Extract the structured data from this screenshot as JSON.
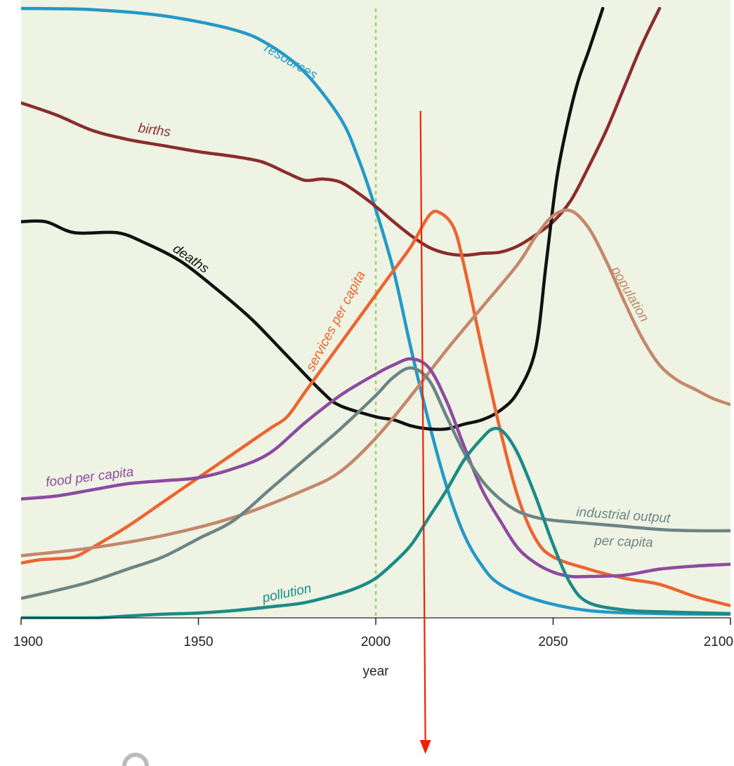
{
  "chart_data": {
    "type": "line",
    "xlabel": "year",
    "xlim": [
      1900,
      2100
    ],
    "ylim": [
      0,
      1
    ],
    "xticks": [
      1900,
      1950,
      2000,
      2050,
      2100
    ],
    "grid": false,
    "reference_line": {
      "x": 2000,
      "style": "dashed",
      "color": "#9fd36a"
    },
    "annotation_arrow": {
      "x": 2013,
      "color": "#ee2200",
      "direction": "down"
    },
    "background": "#eef3e3",
    "series": [
      {
        "name": "resources",
        "color": "#2399c8",
        "points": [
          [
            1900,
            1.0
          ],
          [
            1920,
            0.998
          ],
          [
            1940,
            0.988
          ],
          [
            1960,
            0.965
          ],
          [
            1970,
            0.94
          ],
          [
            1980,
            0.895
          ],
          [
            1990,
            0.82
          ],
          [
            1995,
            0.755
          ],
          [
            2000,
            0.67
          ],
          [
            2005,
            0.57
          ],
          [
            2010,
            0.44
          ],
          [
            2015,
            0.32
          ],
          [
            2020,
            0.215
          ],
          [
            2025,
            0.135
          ],
          [
            2030,
            0.085
          ],
          [
            2035,
            0.055
          ],
          [
            2045,
            0.03
          ],
          [
            2060,
            0.012
          ],
          [
            2080,
            0.007
          ],
          [
            2100,
            0.006
          ]
        ]
      },
      {
        "name": "births",
        "color": "#8b2c2c",
        "points": [
          [
            1900,
            0.845
          ],
          [
            1910,
            0.825
          ],
          [
            1920,
            0.8
          ],
          [
            1930,
            0.785
          ],
          [
            1940,
            0.775
          ],
          [
            1950,
            0.765
          ],
          [
            1960,
            0.757
          ],
          [
            1968,
            0.748
          ],
          [
            1975,
            0.73
          ],
          [
            1980,
            0.718
          ],
          [
            1985,
            0.72
          ],
          [
            1990,
            0.715
          ],
          [
            1995,
            0.697
          ],
          [
            2000,
            0.675
          ],
          [
            2005,
            0.65
          ],
          [
            2010,
            0.627
          ],
          [
            2015,
            0.608
          ],
          [
            2020,
            0.598
          ],
          [
            2025,
            0.595
          ],
          [
            2030,
            0.598
          ],
          [
            2035,
            0.6
          ],
          [
            2040,
            0.61
          ],
          [
            2045,
            0.628
          ],
          [
            2050,
            0.65
          ],
          [
            2055,
            0.685
          ],
          [
            2060,
            0.74
          ],
          [
            2065,
            0.8
          ],
          [
            2070,
            0.87
          ],
          [
            2075,
            0.94
          ],
          [
            2080,
            1.0
          ]
        ]
      },
      {
        "name": "deaths",
        "color": "#111111",
        "points": [
          [
            1900,
            0.65
          ],
          [
            1907,
            0.65
          ],
          [
            1915,
            0.632
          ],
          [
            1927,
            0.632
          ],
          [
            1935,
            0.615
          ],
          [
            1945,
            0.585
          ],
          [
            1955,
            0.54
          ],
          [
            1965,
            0.49
          ],
          [
            1975,
            0.43
          ],
          [
            1985,
            0.37
          ],
          [
            1990,
            0.348
          ],
          [
            2000,
            0.33
          ],
          [
            2005,
            0.325
          ],
          [
            2010,
            0.315
          ],
          [
            2015,
            0.31
          ],
          [
            2020,
            0.31
          ],
          [
            2025,
            0.318
          ],
          [
            2030,
            0.325
          ],
          [
            2035,
            0.34
          ],
          [
            2040,
            0.37
          ],
          [
            2045,
            0.44
          ],
          [
            2048,
            0.58
          ],
          [
            2051,
            0.72
          ],
          [
            2054,
            0.81
          ],
          [
            2057,
            0.88
          ],
          [
            2060,
            0.93
          ],
          [
            2064,
            1.0
          ]
        ]
      },
      {
        "name": "services per capita",
        "color": "#ec6430",
        "points": [
          [
            1900,
            0.09
          ],
          [
            1905,
            0.095
          ],
          [
            1910,
            0.097
          ],
          [
            1915,
            0.1
          ],
          [
            1920,
            0.115
          ],
          [
            1930,
            0.15
          ],
          [
            1940,
            0.19
          ],
          [
            1950,
            0.23
          ],
          [
            1960,
            0.27
          ],
          [
            1970,
            0.31
          ],
          [
            1975,
            0.33
          ],
          [
            1980,
            0.37
          ],
          [
            1990,
            0.45
          ],
          [
            2000,
            0.53
          ],
          [
            2005,
            0.57
          ],
          [
            2010,
            0.61
          ],
          [
            2015,
            0.66
          ],
          [
            2018,
            0.665
          ],
          [
            2022,
            0.64
          ],
          [
            2025,
            0.575
          ],
          [
            2030,
            0.44
          ],
          [
            2035,
            0.31
          ],
          [
            2040,
            0.2
          ],
          [
            2045,
            0.13
          ],
          [
            2050,
            0.1
          ],
          [
            2060,
            0.08
          ],
          [
            2070,
            0.065
          ],
          [
            2080,
            0.055
          ],
          [
            2090,
            0.035
          ],
          [
            2100,
            0.02
          ]
        ]
      },
      {
        "name": "population",
        "color": "#c4876b",
        "points": [
          [
            1900,
            0.102
          ],
          [
            1920,
            0.115
          ],
          [
            1940,
            0.135
          ],
          [
            1960,
            0.165
          ],
          [
            1980,
            0.21
          ],
          [
            1990,
            0.24
          ],
          [
            2000,
            0.295
          ],
          [
            2010,
            0.365
          ],
          [
            2020,
            0.44
          ],
          [
            2030,
            0.51
          ],
          [
            2040,
            0.58
          ],
          [
            2045,
            0.625
          ],
          [
            2050,
            0.66
          ],
          [
            2055,
            0.668
          ],
          [
            2060,
            0.64
          ],
          [
            2065,
            0.585
          ],
          [
            2070,
            0.52
          ],
          [
            2075,
            0.46
          ],
          [
            2080,
            0.415
          ],
          [
            2085,
            0.39
          ],
          [
            2090,
            0.375
          ],
          [
            2095,
            0.36
          ],
          [
            2100,
            0.35
          ]
        ]
      },
      {
        "name": "food per capita",
        "color": "#8d4aa0",
        "points": [
          [
            1900,
            0.195
          ],
          [
            1910,
            0.2
          ],
          [
            1920,
            0.21
          ],
          [
            1930,
            0.22
          ],
          [
            1940,
            0.225
          ],
          [
            1950,
            0.23
          ],
          [
            1960,
            0.245
          ],
          [
            1970,
            0.27
          ],
          [
            1980,
            0.32
          ],
          [
            1990,
            0.365
          ],
          [
            2000,
            0.4
          ],
          [
            2005,
            0.415
          ],
          [
            2010,
            0.425
          ],
          [
            2015,
            0.41
          ],
          [
            2020,
            0.355
          ],
          [
            2025,
            0.28
          ],
          [
            2030,
            0.21
          ],
          [
            2035,
            0.16
          ],
          [
            2040,
            0.115
          ],
          [
            2045,
            0.09
          ],
          [
            2050,
            0.075
          ],
          [
            2055,
            0.068
          ],
          [
            2060,
            0.068
          ],
          [
            2070,
            0.07
          ],
          [
            2080,
            0.08
          ],
          [
            2090,
            0.085
          ],
          [
            2100,
            0.088
          ]
        ]
      },
      {
        "name": "industrial output per capita",
        "color": "#6d8486",
        "points": [
          [
            1900,
            0.032
          ],
          [
            1910,
            0.045
          ],
          [
            1920,
            0.06
          ],
          [
            1930,
            0.08
          ],
          [
            1940,
            0.1
          ],
          [
            1950,
            0.13
          ],
          [
            1960,
            0.16
          ],
          [
            1970,
            0.21
          ],
          [
            1980,
            0.26
          ],
          [
            1990,
            0.31
          ],
          [
            2000,
            0.365
          ],
          [
            2005,
            0.395
          ],
          [
            2010,
            0.41
          ],
          [
            2015,
            0.39
          ],
          [
            2020,
            0.33
          ],
          [
            2025,
            0.27
          ],
          [
            2030,
            0.225
          ],
          [
            2035,
            0.195
          ],
          [
            2040,
            0.175
          ],
          [
            2045,
            0.165
          ],
          [
            2050,
            0.16
          ],
          [
            2060,
            0.155
          ],
          [
            2070,
            0.15
          ],
          [
            2080,
            0.145
          ],
          [
            2090,
            0.143
          ],
          [
            2100,
            0.143
          ]
        ]
      },
      {
        "name": "pollution",
        "color": "#1a8b86",
        "points": [
          [
            1900,
            0.0
          ],
          [
            1920,
            0.0
          ],
          [
            1930,
            0.003
          ],
          [
            1940,
            0.006
          ],
          [
            1950,
            0.008
          ],
          [
            1960,
            0.012
          ],
          [
            1970,
            0.018
          ],
          [
            1980,
            0.025
          ],
          [
            1990,
            0.04
          ],
          [
            1995,
            0.05
          ],
          [
            2000,
            0.065
          ],
          [
            2005,
            0.09
          ],
          [
            2010,
            0.12
          ],
          [
            2015,
            0.165
          ],
          [
            2020,
            0.21
          ],
          [
            2025,
            0.26
          ],
          [
            2030,
            0.295
          ],
          [
            2033,
            0.31
          ],
          [
            2036,
            0.305
          ],
          [
            2040,
            0.27
          ],
          [
            2045,
            0.2
          ],
          [
            2050,
            0.12
          ],
          [
            2055,
            0.055
          ],
          [
            2060,
            0.025
          ],
          [
            2070,
            0.013
          ],
          [
            2080,
            0.01
          ],
          [
            2100,
            0.007
          ]
        ]
      }
    ]
  }
}
